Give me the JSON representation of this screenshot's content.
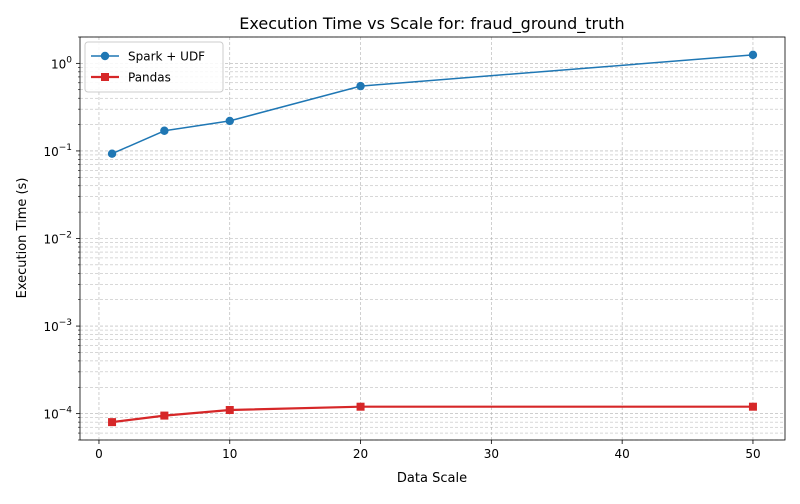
{
  "chart_data": {
    "type": "line",
    "title": "Execution Time vs Scale for: fraud_ground_truth",
    "xlabel": "Data Scale",
    "ylabel": "Execution Time (s)",
    "xlim": [
      -1.45,
      52.45
    ],
    "ylim": [
      5e-05,
      2.0
    ],
    "yscale": "log",
    "x_ticks": [
      0,
      10,
      20,
      30,
      40,
      50
    ],
    "x_tick_labels": [
      "0",
      "10",
      "20",
      "30",
      "40",
      "50"
    ],
    "y_ticks": [
      0.0001,
      0.001,
      0.01,
      0.1,
      1
    ],
    "y_tick_labels": [
      {
        "base": "10",
        "exp": "−4"
      },
      {
        "base": "10",
        "exp": "−3"
      },
      {
        "base": "10",
        "exp": "−2"
      },
      {
        "base": "10",
        "exp": "−1"
      },
      {
        "base": "10",
        "exp": "0"
      }
    ],
    "grid": "both (major and minor, dashed)",
    "legend_position": "upper-left",
    "x": [
      1,
      5,
      10,
      20,
      50
    ],
    "series": [
      {
        "name": "Spark + UDF",
        "color": "#1f77b4",
        "marker": "circle",
        "values": [
          0.093,
          0.17,
          0.22,
          0.55,
          1.25
        ]
      },
      {
        "name": "Pandas",
        "color": "#d62728",
        "marker": "square",
        "values": [
          8e-05,
          9.5e-05,
          0.00011,
          0.00012,
          0.00012
        ]
      }
    ]
  }
}
